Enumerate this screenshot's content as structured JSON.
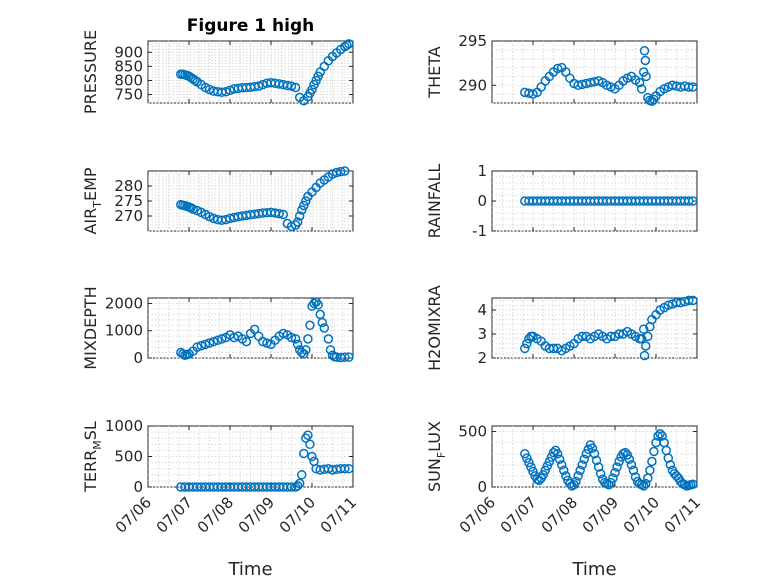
{
  "window": {
    "title": "Figure 1 high"
  },
  "style": {
    "marker_color": "#0072bd"
  },
  "chart_data": [
    {
      "type": "scatter",
      "ylabel": "PRESSURE",
      "title": "Figure 1 high",
      "ylim": [
        720,
        940
      ],
      "yticks": [
        750,
        800,
        850,
        900
      ],
      "xlim": [
        0,
        5
      ],
      "xticklabels": [],
      "series": [
        {
          "x": [
            0.8,
            0.85,
            0.9,
            0.95,
            1.0,
            1.05,
            1.1,
            1.15,
            1.2,
            1.3,
            1.4,
            1.5,
            1.6,
            1.7,
            1.8,
            1.9,
            2.0,
            2.1,
            2.2,
            2.3,
            2.4,
            2.5,
            2.6,
            2.7,
            2.8,
            2.9,
            3.0,
            3.1,
            3.2,
            3.3,
            3.4,
            3.5,
            3.6,
            3.7,
            3.8,
            3.9,
            3.95,
            4.0,
            4.05,
            4.1,
            4.15,
            4.2,
            4.3,
            4.4,
            4.5,
            4.6,
            4.7,
            4.8,
            4.85,
            4.9
          ],
          "y": [
            822,
            822,
            820,
            818,
            815,
            810,
            805,
            800,
            795,
            785,
            775,
            768,
            762,
            760,
            758,
            760,
            765,
            770,
            772,
            774,
            775,
            776,
            778,
            780,
            785,
            790,
            792,
            790,
            788,
            785,
            782,
            780,
            775,
            740,
            728,
            742,
            755,
            768,
            785,
            800,
            815,
            830,
            850,
            870,
            885,
            898,
            910,
            920,
            925,
            930
          ]
        }
      ]
    },
    {
      "type": "scatter",
      "ylabel": "THETA",
      "ylim": [
        288,
        295
      ],
      "yticks": [
        290,
        295
      ],
      "xlim": [
        0,
        5
      ],
      "xticklabels": [],
      "series": [
        {
          "x": [
            0.8,
            0.9,
            1.0,
            1.1,
            1.2,
            1.3,
            1.4,
            1.5,
            1.6,
            1.7,
            1.8,
            1.9,
            2.0,
            2.1,
            2.2,
            2.3,
            2.4,
            2.5,
            2.6,
            2.7,
            2.8,
            2.9,
            3.0,
            3.1,
            3.2,
            3.3,
            3.4,
            3.5,
            3.6,
            3.65,
            3.7,
            3.72,
            3.74,
            3.76,
            3.8,
            3.85,
            3.9,
            3.95,
            4.0,
            4.1,
            4.2,
            4.3,
            4.4,
            4.5,
            4.6,
            4.7,
            4.8,
            4.9
          ],
          "y": [
            289.2,
            289.1,
            289.0,
            289.2,
            289.8,
            290.5,
            291.0,
            291.5,
            291.9,
            292.0,
            291.5,
            290.8,
            290.2,
            290.0,
            290.1,
            290.2,
            290.3,
            290.4,
            290.5,
            290.3,
            290.0,
            289.8,
            289.6,
            290.0,
            290.5,
            290.8,
            291.0,
            290.6,
            290.3,
            289.6,
            291.5,
            293.9,
            292.8,
            291.0,
            288.6,
            288.3,
            288.2,
            288.4,
            288.8,
            289.3,
            289.6,
            289.8,
            290.0,
            289.9,
            289.8,
            289.9,
            289.8,
            289.8
          ]
        }
      ]
    },
    {
      "type": "scatter",
      "ylabel": "AIR_TEMP",
      "ylim": [
        265,
        285
      ],
      "yticks": [
        270,
        275,
        280
      ],
      "xlim": [
        0,
        5
      ],
      "xticklabels": [],
      "series": [
        {
          "x": [
            0.8,
            0.85,
            0.9,
            0.95,
            1.0,
            1.05,
            1.1,
            1.2,
            1.3,
            1.4,
            1.5,
            1.6,
            1.7,
            1.8,
            1.9,
            2.0,
            2.1,
            2.2,
            2.3,
            2.4,
            2.5,
            2.6,
            2.7,
            2.8,
            2.9,
            3.0,
            3.1,
            3.2,
            3.3,
            3.4,
            3.5,
            3.6,
            3.65,
            3.7,
            3.75,
            3.8,
            3.85,
            3.9,
            4.0,
            4.1,
            4.2,
            4.3,
            4.4,
            4.5,
            4.6,
            4.7,
            4.8,
            4.9
          ],
          "y": [
            273.8,
            273.6,
            273.4,
            273.2,
            273.0,
            272.7,
            272.3,
            271.8,
            271.2,
            270.5,
            269.8,
            269.2,
            268.8,
            268.6,
            268.8,
            269.2,
            269.5,
            269.8,
            270.0,
            270.2,
            270.4,
            270.6,
            270.8,
            271.0,
            271.1,
            271.2,
            271.0,
            270.8,
            270.5,
            267.5,
            266.5,
            267.0,
            268.0,
            270.0,
            272.0,
            273.5,
            275.0,
            276.5,
            278.0,
            279.5,
            281.0,
            282.0,
            283.0,
            284.0,
            284.5,
            284.8,
            285.0,
            285.3
          ]
        }
      ]
    },
    {
      "type": "scatter",
      "ylabel": "RAINFALL",
      "ylim": [
        -1,
        1
      ],
      "yticks": [
        -1,
        0,
        1
      ],
      "xlim": [
        0,
        5
      ],
      "xticklabels": [],
      "series": [
        {
          "x": [
            0.8,
            0.9,
            1.0,
            1.1,
            1.2,
            1.3,
            1.4,
            1.5,
            1.6,
            1.7,
            1.8,
            1.9,
            2.0,
            2.1,
            2.2,
            2.3,
            2.4,
            2.5,
            2.6,
            2.7,
            2.8,
            2.9,
            3.0,
            3.1,
            3.2,
            3.3,
            3.4,
            3.5,
            3.6,
            3.7,
            3.8,
            3.9,
            4.0,
            4.1,
            4.2,
            4.3,
            4.4,
            4.5,
            4.6,
            4.7,
            4.8,
            4.9
          ],
          "y": [
            0,
            0,
            0,
            0,
            0,
            0,
            0,
            0,
            0,
            0,
            0,
            0,
            0,
            0,
            0,
            0,
            0,
            0,
            0,
            0,
            0,
            0,
            0,
            0,
            0,
            0,
            0,
            0,
            0,
            0,
            0,
            0,
            0,
            0,
            0,
            0,
            0,
            0,
            0,
            0,
            0,
            0
          ]
        }
      ]
    },
    {
      "type": "scatter",
      "ylabel": "MIXDEPTH",
      "ylim": [
        0,
        2200
      ],
      "yticks": [
        0,
        1000,
        2000
      ],
      "xlim": [
        0,
        5
      ],
      "xticklabels": [],
      "series": [
        {
          "x": [
            0.8,
            0.85,
            0.9,
            0.95,
            1.0,
            1.1,
            1.2,
            1.3,
            1.4,
            1.5,
            1.6,
            1.7,
            1.8,
            1.9,
            2.0,
            2.1,
            2.2,
            2.3,
            2.4,
            2.5,
            2.6,
            2.7,
            2.8,
            2.9,
            3.0,
            3.1,
            3.2,
            3.3,
            3.4,
            3.5,
            3.6,
            3.65,
            3.7,
            3.75,
            3.8,
            3.85,
            3.9,
            3.95,
            4.0,
            4.05,
            4.1,
            4.15,
            4.2,
            4.25,
            4.3,
            4.4,
            4.45,
            4.5,
            4.55,
            4.6,
            4.7,
            4.8,
            4.9
          ],
          "y": [
            200,
            150,
            100,
            120,
            150,
            250,
            400,
            450,
            500,
            550,
            600,
            650,
            700,
            750,
            850,
            750,
            800,
            700,
            600,
            900,
            1050,
            800,
            600,
            550,
            500,
            650,
            800,
            900,
            850,
            750,
            700,
            500,
            300,
            200,
            150,
            300,
            700,
            1200,
            1900,
            2000,
            2050,
            1950,
            1600,
            1300,
            1100,
            700,
            300,
            100,
            50,
            30,
            20,
            30,
            30
          ]
        }
      ]
    },
    {
      "type": "scatter",
      "ylabel": "H2OMIXRA",
      "ylim": [
        2,
        4.5
      ],
      "yticks": [
        2,
        3,
        4
      ],
      "xlim": [
        0,
        5
      ],
      "xticklabels": [],
      "series": [
        {
          "x": [
            0.8,
            0.85,
            0.9,
            0.95,
            1.0,
            1.1,
            1.2,
            1.3,
            1.4,
            1.5,
            1.6,
            1.7,
            1.8,
            1.9,
            2.0,
            2.1,
            2.2,
            2.3,
            2.4,
            2.5,
            2.6,
            2.7,
            2.8,
            2.9,
            3.0,
            3.1,
            3.2,
            3.3,
            3.4,
            3.5,
            3.6,
            3.65,
            3.7,
            3.72,
            3.75,
            3.8,
            3.85,
            3.9,
            4.0,
            4.1,
            4.2,
            4.3,
            4.4,
            4.5,
            4.6,
            4.7,
            4.8,
            4.9
          ],
          "y": [
            2.4,
            2.6,
            2.8,
            2.9,
            2.9,
            2.8,
            2.7,
            2.5,
            2.4,
            2.4,
            2.4,
            2.3,
            2.4,
            2.5,
            2.6,
            2.8,
            2.9,
            2.9,
            2.8,
            2.9,
            3.0,
            2.9,
            2.8,
            2.9,
            2.9,
            3.0,
            3.0,
            3.1,
            3.0,
            2.9,
            2.8,
            2.8,
            3.2,
            2.1,
            2.5,
            2.9,
            3.3,
            3.6,
            3.8,
            4.0,
            4.1,
            4.2,
            4.25,
            4.3,
            4.3,
            4.35,
            4.4,
            4.4
          ]
        }
      ]
    },
    {
      "type": "scatter",
      "ylabel": "TERR_MSL",
      "ylim": [
        0,
        1000
      ],
      "yticks": [
        0,
        500,
        1000
      ],
      "xlim": [
        0,
        5
      ],
      "xticklabels": [
        "07/06",
        "07/07",
        "07/08",
        "07/09",
        "07/10",
        "07/11"
      ],
      "xlabel": "Time",
      "series": [
        {
          "x": [
            0.8,
            0.9,
            1.0,
            1.1,
            1.2,
            1.3,
            1.4,
            1.5,
            1.6,
            1.7,
            1.8,
            1.9,
            2.0,
            2.1,
            2.2,
            2.3,
            2.4,
            2.5,
            2.6,
            2.7,
            2.8,
            2.9,
            3.0,
            3.1,
            3.2,
            3.3,
            3.4,
            3.5,
            3.6,
            3.65,
            3.7,
            3.75,
            3.8,
            3.85,
            3.9,
            3.95,
            4.0,
            4.05,
            4.1,
            4.2,
            4.3,
            4.4,
            4.5,
            4.6,
            4.7,
            4.8,
            4.9
          ],
          "y": [
            0,
            0,
            0,
            0,
            0,
            0,
            0,
            0,
            0,
            0,
            0,
            0,
            0,
            0,
            0,
            0,
            0,
            0,
            0,
            0,
            0,
            0,
            0,
            0,
            0,
            0,
            0,
            0,
            0,
            20,
            60,
            200,
            550,
            800,
            850,
            700,
            500,
            420,
            300,
            280,
            290,
            300,
            280,
            290,
            300,
            300,
            300
          ]
        }
      ]
    },
    {
      "type": "scatter",
      "ylabel": "SUN_FLUX",
      "ylim": [
        0,
        550
      ],
      "yticks": [
        0,
        500
      ],
      "xlim": [
        0,
        5
      ],
      "xticklabels": [
        "07/06",
        "07/07",
        "07/08",
        "07/09",
        "07/10",
        "07/11"
      ],
      "xlabel": "Time",
      "series": [
        {
          "x": [
            0.8,
            0.85,
            0.9,
            0.95,
            1.0,
            1.05,
            1.1,
            1.15,
            1.2,
            1.25,
            1.3,
            1.35,
            1.4,
            1.45,
            1.5,
            1.55,
            1.6,
            1.65,
            1.7,
            1.75,
            1.8,
            1.85,
            1.9,
            1.95,
            2.0,
            2.05,
            2.1,
            2.15,
            2.2,
            2.25,
            2.3,
            2.35,
            2.4,
            2.45,
            2.5,
            2.55,
            2.6,
            2.65,
            2.7,
            2.75,
            2.8,
            2.85,
            2.9,
            2.95,
            3.0,
            3.05,
            3.1,
            3.15,
            3.2,
            3.25,
            3.3,
            3.35,
            3.4,
            3.45,
            3.5,
            3.55,
            3.6,
            3.65,
            3.7,
            3.75,
            3.8,
            3.85,
            3.9,
            3.95,
            4.0,
            4.05,
            4.1,
            4.15,
            4.2,
            4.25,
            4.3,
            4.35,
            4.4,
            4.45,
            4.5,
            4.55,
            4.6,
            4.65,
            4.7,
            4.75,
            4.8,
            4.85,
            4.9
          ],
          "y": [
            300,
            260,
            220,
            180,
            140,
            100,
            70,
            60,
            80,
            110,
            150,
            190,
            230,
            270,
            310,
            330,
            300,
            250,
            200,
            150,
            100,
            60,
            30,
            10,
            20,
            50,
            100,
            150,
            200,
            250,
            300,
            340,
            380,
            350,
            300,
            240,
            180,
            120,
            70,
            40,
            30,
            20,
            40,
            80,
            130,
            180,
            230,
            270,
            300,
            310,
            290,
            250,
            200,
            150,
            90,
            50,
            30,
            20,
            10,
            30,
            80,
            150,
            230,
            320,
            400,
            460,
            480,
            460,
            400,
            330,
            260,
            200,
            150,
            120,
            100,
            80,
            50,
            30,
            20,
            10,
            15,
            20,
            25
          ]
        }
      ]
    }
  ]
}
